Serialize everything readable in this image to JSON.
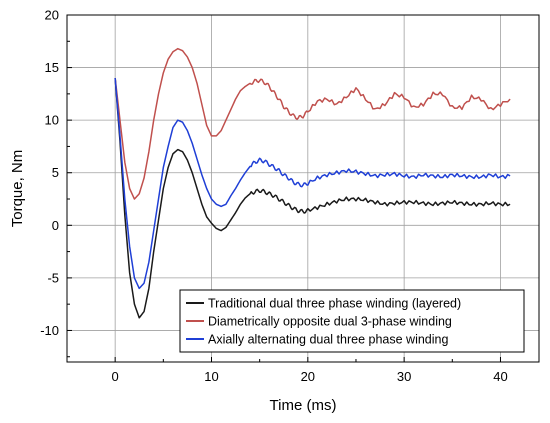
{
  "chart_data": {
    "type": "line",
    "xlabel": "Time (ms)",
    "ylabel": "Torque, Nm",
    "xlim": [
      -5,
      44
    ],
    "ylim": [
      -13,
      20
    ],
    "xticks": [
      0,
      10,
      20,
      30,
      40
    ],
    "yticks": [
      -10,
      -5,
      0,
      5,
      10,
      15,
      20
    ],
    "xtick_labels": [
      "0",
      "10",
      "20",
      "30",
      "40"
    ],
    "ytick_labels": [
      "-10",
      "-5",
      "0",
      "5",
      "10",
      "15",
      "20"
    ],
    "grid": true,
    "legend_position": "bottom-right",
    "series": [
      {
        "name": "Traditional dual three phase winding (layered)",
        "color": "#1a1a1a",
        "x": [
          0,
          0.5,
          1,
          1.5,
          2,
          2.5,
          3,
          3.5,
          4,
          4.5,
          5,
          5.5,
          6,
          6.5,
          7,
          7.5,
          8,
          8.5,
          9,
          9.5,
          10,
          10.5,
          11,
          11.5,
          12,
          12.5,
          13,
          13.5,
          14,
          14.5,
          15,
          15.5,
          16,
          16.5,
          17,
          17.5,
          18,
          18.5,
          19,
          19.5,
          20,
          21,
          22,
          23,
          24,
          25,
          26,
          27,
          28,
          29,
          30,
          31,
          32,
          33,
          34,
          35,
          36,
          37,
          38,
          39,
          40,
          41
        ],
        "y": [
          14,
          8,
          1,
          -4.5,
          -7.5,
          -8.8,
          -8.2,
          -6,
          -2.5,
          0.5,
          3.5,
          5.5,
          6.8,
          7.2,
          7.0,
          6.2,
          5.0,
          3.5,
          2.0,
          0.8,
          0.2,
          -0.3,
          -0.5,
          -0.2,
          0.5,
          1.2,
          2.0,
          2.6,
          3.0,
          3.2,
          3.3,
          3.2,
          3.0,
          2.8,
          2.5,
          2.2,
          1.9,
          1.6,
          1.4,
          1.3,
          1.4,
          1.7,
          2.0,
          2.3,
          2.5,
          2.5,
          2.4,
          2.2,
          2.0,
          2.1,
          2.2,
          2.2,
          2.1,
          2.0,
          2.1,
          2.2,
          2.1,
          2.0,
          2.0,
          2.1,
          2.0,
          2.0
        ]
      },
      {
        "name": "Diametrically opposite dual 3-phase winding",
        "color": "#c0504d",
        "x": [
          0,
          0.5,
          1,
          1.5,
          2,
          2.5,
          3,
          3.5,
          4,
          4.5,
          5,
          5.5,
          6,
          6.5,
          7,
          7.5,
          8,
          8.5,
          9,
          9.5,
          10,
          10.5,
          11,
          11.5,
          12,
          12.5,
          13,
          13.5,
          14,
          14.5,
          15,
          15.5,
          16,
          16.5,
          17,
          17.5,
          18,
          18.5,
          19,
          19.5,
          20,
          21,
          22,
          23,
          24,
          25,
          26,
          27,
          28,
          29,
          30,
          31,
          32,
          33,
          34,
          35,
          36,
          37,
          38,
          39,
          40,
          41
        ],
        "y": [
          14,
          10,
          6,
          3.5,
          2.5,
          3.0,
          4.5,
          7,
          10,
          12.5,
          14.5,
          15.8,
          16.5,
          16.8,
          16.6,
          16.0,
          15.0,
          13.5,
          11.5,
          9.5,
          8.5,
          8.5,
          9.0,
          10.0,
          11.0,
          12.0,
          12.8,
          13.2,
          13.5,
          13.7,
          13.8,
          13.6,
          13.2,
          12.6,
          12.0,
          11.3,
          10.8,
          10.4,
          10.2,
          10.4,
          10.8,
          11.8,
          12.0,
          11.5,
          12.2,
          13.0,
          12.0,
          11.0,
          11.5,
          12.5,
          12.2,
          11.2,
          11.5,
          12.5,
          12.5,
          11.2,
          11.2,
          12.2,
          12.0,
          11.0,
          11.5,
          12.0
        ]
      },
      {
        "name": "Axially alternating dual three phase winding",
        "color": "#1f3fd6",
        "x": [
          0,
          0.5,
          1,
          1.5,
          2,
          2.5,
          3,
          3.5,
          4,
          4.5,
          5,
          5.5,
          6,
          6.5,
          7,
          7.5,
          8,
          8.5,
          9,
          9.5,
          10,
          10.5,
          11,
          11.5,
          12,
          12.5,
          13,
          13.5,
          14,
          14.5,
          15,
          15.5,
          16,
          16.5,
          17,
          17.5,
          18,
          18.5,
          19,
          19.5,
          20,
          21,
          22,
          23,
          24,
          25,
          26,
          27,
          28,
          29,
          30,
          31,
          32,
          33,
          34,
          35,
          36,
          37,
          38,
          39,
          40,
          41
        ],
        "y": [
          14,
          8.5,
          2.5,
          -2.0,
          -5.0,
          -6.0,
          -5.5,
          -3.5,
          -0.5,
          2.5,
          5.5,
          7.5,
          9.3,
          10.0,
          9.8,
          9.0,
          7.8,
          6.3,
          4.8,
          3.5,
          2.5,
          2.0,
          1.8,
          2.0,
          2.8,
          3.5,
          4.3,
          5.0,
          5.6,
          6.0,
          6.2,
          6.1,
          5.8,
          5.5,
          5.2,
          4.8,
          4.5,
          4.1,
          3.9,
          3.8,
          4.0,
          4.5,
          4.8,
          5.0,
          5.2,
          5.1,
          4.9,
          4.7,
          4.8,
          4.9,
          4.7,
          4.6,
          4.8,
          4.7,
          4.6,
          4.8,
          4.7,
          4.6,
          4.6,
          4.8,
          4.6,
          4.7
        ]
      }
    ]
  }
}
